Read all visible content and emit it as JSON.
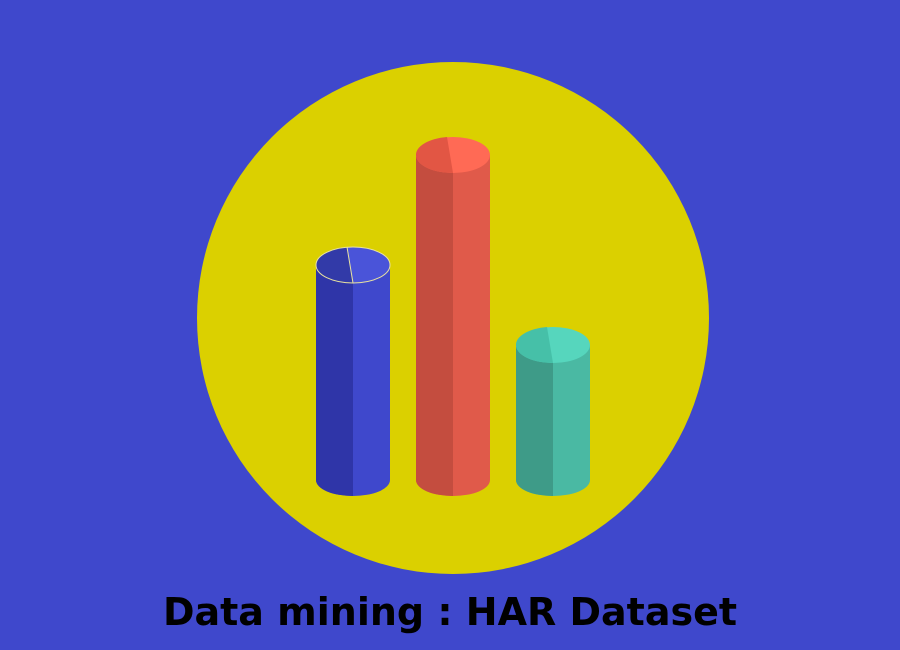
{
  "caption": "Data mining : HAR Dataset",
  "colors": {
    "background": "#3f48cc",
    "badge": "#dbd000",
    "bar_blue_front": "#3f48cc",
    "bar_blue_side": "#2f35a8",
    "bar_red_front": "#e05a4a",
    "bar_red_side": "#c44d3f",
    "bar_teal_front": "#4ab9a3",
    "bar_teal_side": "#3e9b88"
  },
  "icon": "bar-chart-cylinders-icon"
}
